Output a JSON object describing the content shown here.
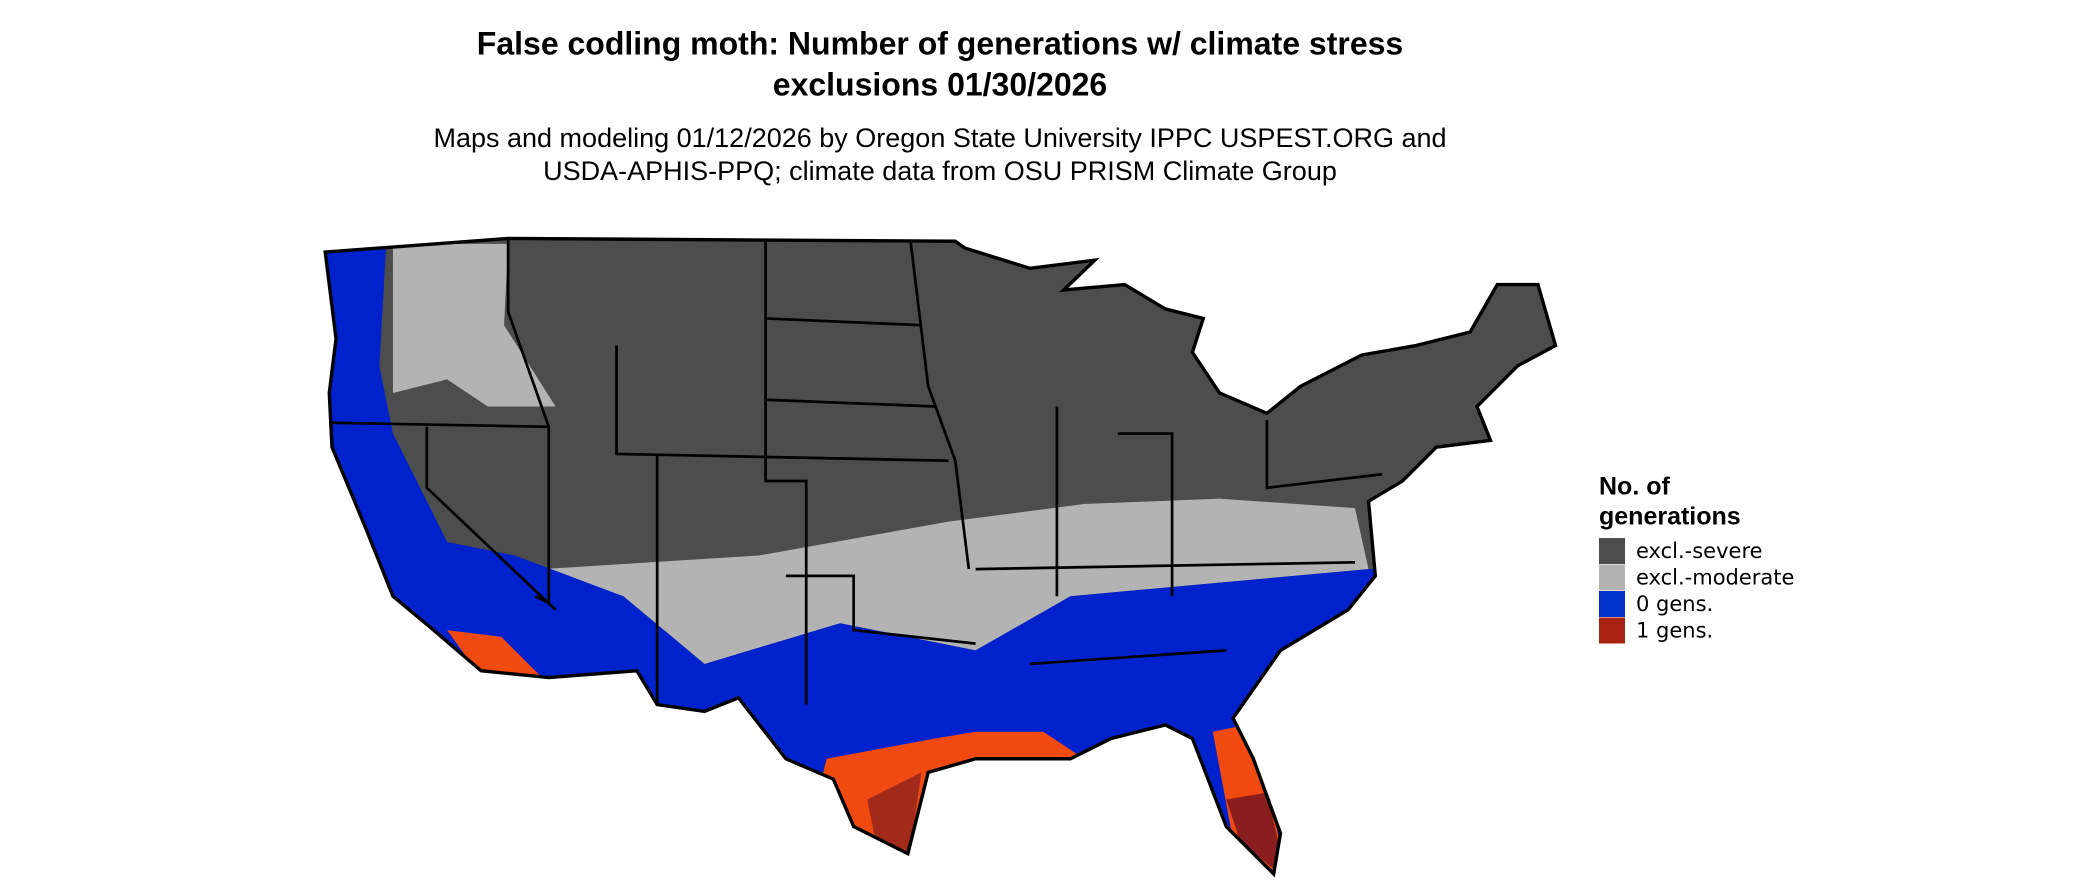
{
  "header": {
    "title_lines": [
      "False codling moth: Number of generations w/ climate stress",
      "exclusions 01/30/2026"
    ],
    "subtitle_lines": [
      "Maps and modeling 01/12/2026 by Oregon State University IPPC USPEST.ORG and",
      "USDA-APHIS-PPQ; climate data from OSU PRISM Climate Group"
    ]
  },
  "legend": {
    "title_lines": [
      "No. of",
      "generations"
    ],
    "items": [
      {
        "label": "excl.-severe",
        "color": "#4d4d4d"
      },
      {
        "label": "excl.-moderate",
        "color": "#b3b3b3"
      },
      {
        "label": "0 gens.",
        "color": "#0033cc"
      },
      {
        "label": "1 gens.",
        "color": "#aa2211"
      }
    ]
  }
}
